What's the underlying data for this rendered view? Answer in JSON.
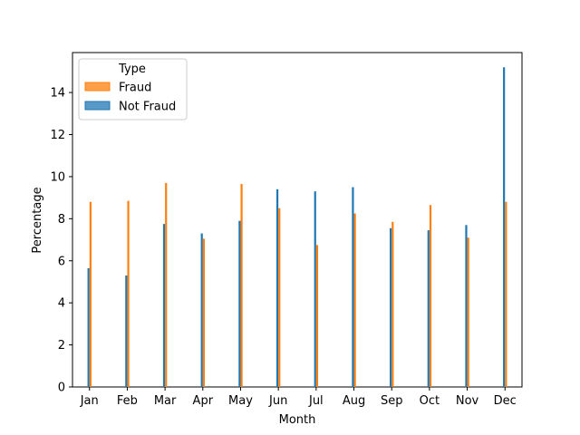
{
  "chart_data": {
    "type": "bar",
    "categories": [
      "Jan",
      "Feb",
      "Mar",
      "Apr",
      "May",
      "Jun",
      "Jul",
      "Aug",
      "Sep",
      "Oct",
      "Nov",
      "Dec"
    ],
    "series": [
      {
        "name": "Fraud",
        "color": "#ff7f0e",
        "values": [
          8.8,
          8.85,
          9.7,
          7.05,
          9.65,
          8.5,
          6.75,
          8.25,
          7.85,
          8.65,
          7.1,
          8.8
        ]
      },
      {
        "name": "Not Fraud",
        "color": "#1f77b4",
        "values": [
          5.65,
          5.3,
          7.75,
          7.3,
          7.9,
          9.4,
          9.3,
          9.5,
          7.55,
          7.45,
          7.7,
          15.2
        ]
      }
    ],
    "xlabel": "Month",
    "ylabel": "Percentage",
    "ylim": [
      0,
      15.9
    ],
    "yticks": [
      0,
      2,
      4,
      6,
      8,
      10,
      12,
      14
    ],
    "legend": {
      "title": "Type",
      "placement": "upper-left"
    },
    "grid": false
  }
}
